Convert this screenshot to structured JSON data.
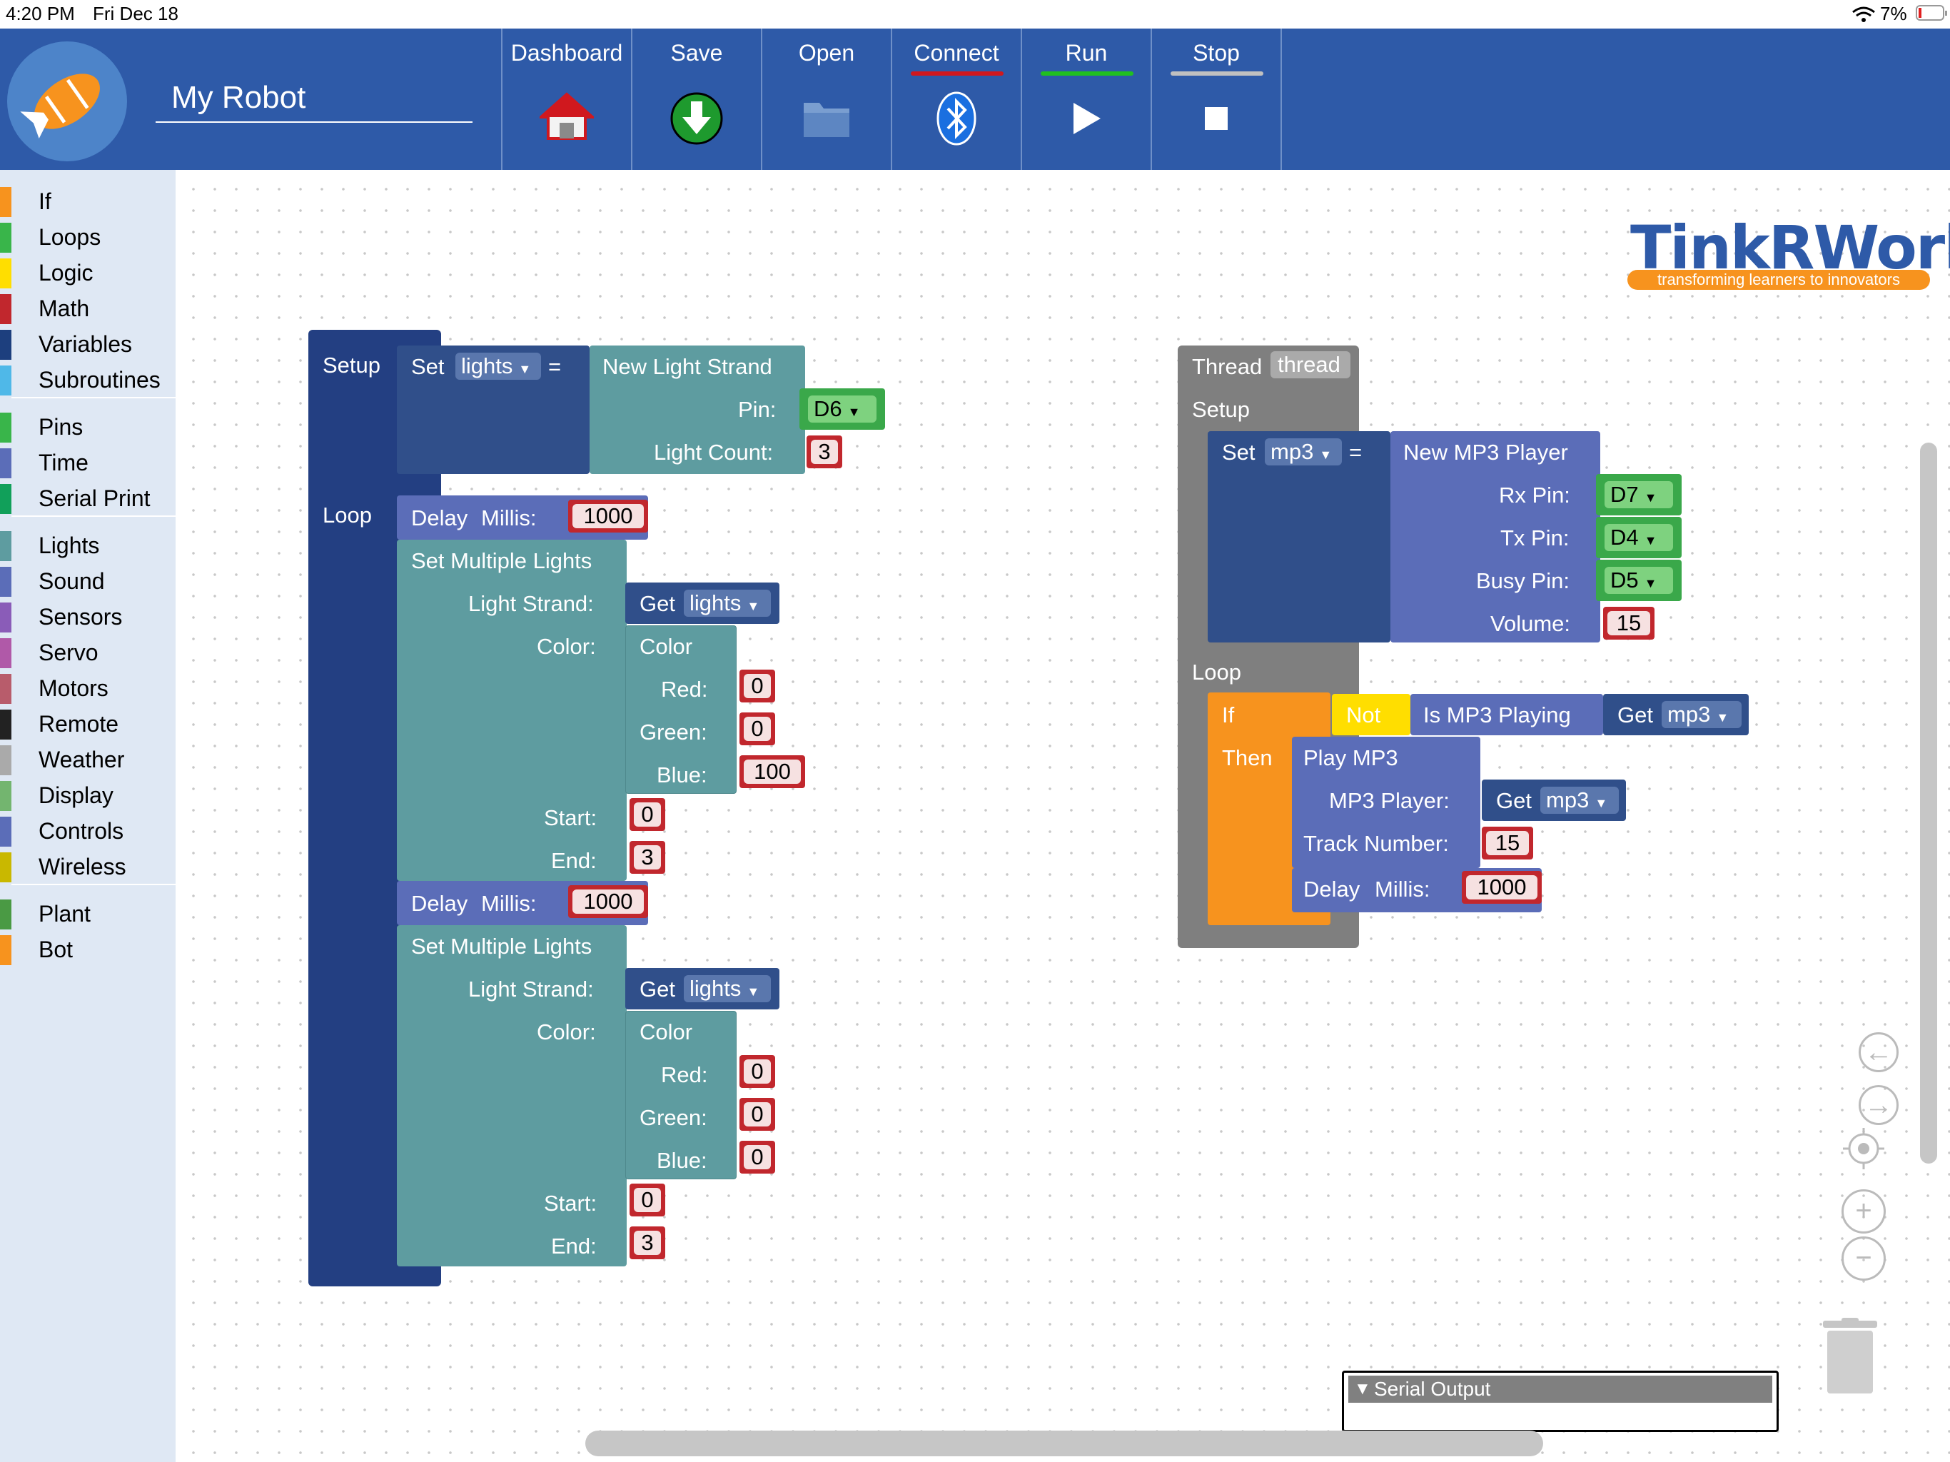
{
  "status": {
    "time": "4:20 PM",
    "date": "Fri Dec 18",
    "battery": "7%"
  },
  "header": {
    "project_name": "My Robot",
    "buttons": [
      {
        "label": "Dashboard",
        "icon": "home-icon"
      },
      {
        "label": "Save",
        "icon": "download-icon"
      },
      {
        "label": "Open",
        "icon": "folder-icon"
      },
      {
        "label": "Connect",
        "icon": "bluetooth-icon",
        "underline": "#d0181e"
      },
      {
        "label": "Run",
        "icon": "play-icon",
        "underline": "#20c020"
      },
      {
        "label": "Stop",
        "icon": "stop-icon",
        "underline": "#c0c0c0"
      }
    ]
  },
  "sidebar": {
    "items": [
      {
        "label": "If",
        "color": "#f7931e"
      },
      {
        "label": "Loops",
        "color": "#39b54a"
      },
      {
        "label": "Logic",
        "color": "#ffde00"
      },
      {
        "label": "Math",
        "color": "#c1272d"
      },
      {
        "label": "Variables",
        "color": "#1d3f7e"
      },
      {
        "label": "Subroutines",
        "color": "#4fb8e8"
      },
      {
        "label": "Pins",
        "color": "#39b54a"
      },
      {
        "label": "Time",
        "color": "#5b6db8"
      },
      {
        "label": "Serial Print",
        "color": "#11a05a"
      },
      {
        "label": "Lights",
        "color": "#5e9ca0"
      },
      {
        "label": "Sound",
        "color": "#5b6db8"
      },
      {
        "label": "Sensors",
        "color": "#8a5cb8"
      },
      {
        "label": "Servo",
        "color": "#b059a8"
      },
      {
        "label": "Motors",
        "color": "#b85c6b"
      },
      {
        "label": "Remote",
        "color": "#222222"
      },
      {
        "label": "Weather",
        "color": "#aaaaaa"
      },
      {
        "label": "Display",
        "color": "#73b56f"
      },
      {
        "label": "Controls",
        "color": "#5b6db8"
      },
      {
        "label": "Wireless",
        "color": "#c9b800"
      },
      {
        "label": "Plant",
        "color": "#4a9a44"
      },
      {
        "label": "Bot",
        "color": "#f7931e"
      }
    ]
  },
  "brand": {
    "name": "TinkRWorks",
    "tagline": "transforming learners to innovators"
  },
  "program1": {
    "setup": "Setup",
    "loop": "Loop",
    "set": "Set",
    "var_lights": "lights",
    "eq": "=",
    "new_strand": "New Light Strand",
    "pin_label": "Pin:",
    "pin_value": "D6",
    "count_label": "Light Count:",
    "count_value": "3",
    "delay": "Delay",
    "millis": "Millis:",
    "delay1": "1000",
    "delay2": "1000",
    "sml": "Set Multiple Lights",
    "strand_label": "Light Strand:",
    "get": "Get",
    "color_label": "Color:",
    "color": "Color",
    "red": "Red:",
    "green": "Green:",
    "blue": "Blue:",
    "r1": "0",
    "g1": "0",
    "b1": "100",
    "r2": "0",
    "g2": "0",
    "b2": "0",
    "start": "Start:",
    "end": "End:",
    "s1": "0",
    "e1": "3",
    "s2": "0",
    "e2": "3"
  },
  "program2": {
    "thread": "Thread",
    "thread_name": "thread",
    "setup": "Setup",
    "loop": "Loop",
    "set": "Set",
    "var_mp3": "mp3",
    "eq": "=",
    "new_mp3": "New MP3 Player",
    "rx": "Rx Pin:",
    "rx_v": "D7",
    "tx": "Tx Pin:",
    "tx_v": "D4",
    "busy": "Busy Pin:",
    "busy_v": "D5",
    "volume": "Volume:",
    "volume_v": "15",
    "if": "If",
    "then": "Then",
    "not": "Not",
    "is_playing": "Is MP3 Playing",
    "get": "Get",
    "play": "Play MP3",
    "player": "MP3 Player:",
    "track": "Track Number:",
    "track_v": "15",
    "delay": "Delay",
    "millis": "Millis:",
    "delay_v": "1000"
  },
  "serial": {
    "label": "Serial Output"
  }
}
